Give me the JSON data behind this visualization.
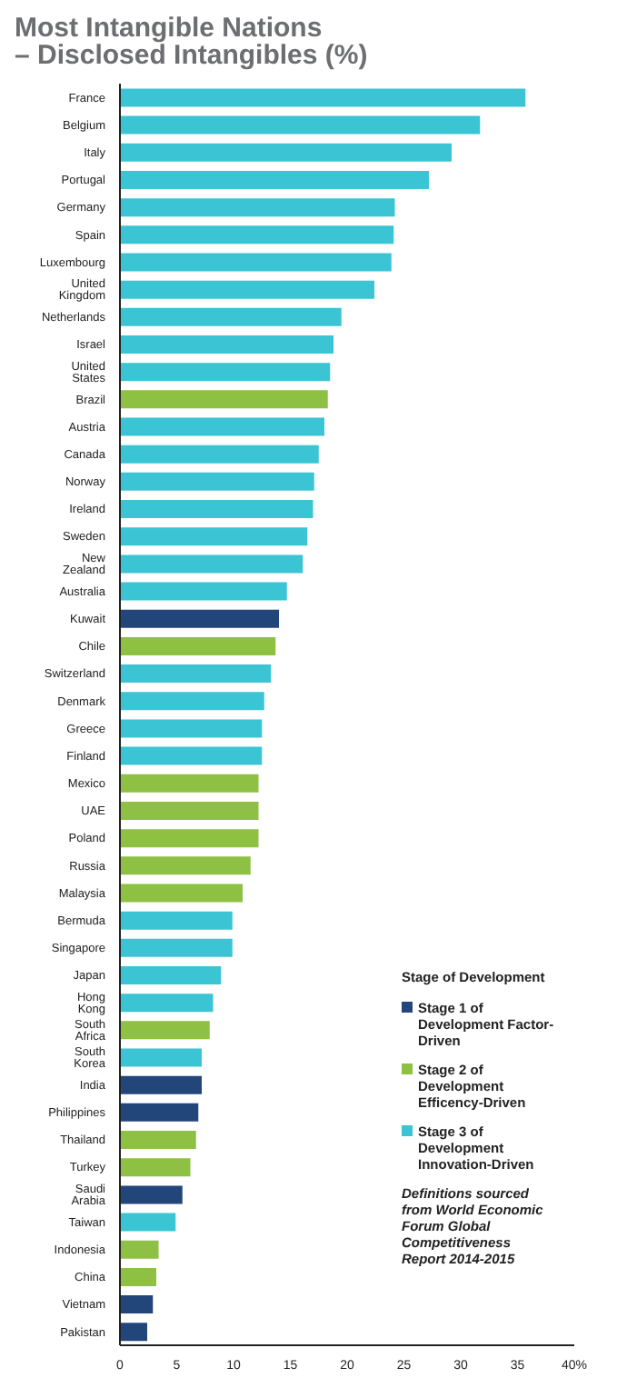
{
  "chart_data": {
    "type": "bar",
    "orientation": "horizontal",
    "stacked": true,
    "title": "Most Intangible Nations\n– Disclosed Intangibles (%)",
    "categories": [
      "France",
      "Belgium",
      "Italy",
      "Portugal",
      "Germany",
      "Spain",
      "Luxembourg",
      "United Kingdom",
      "Netherlands",
      "Israel",
      "United States",
      "Brazil",
      "Austria",
      "Canada",
      "Norway",
      "Ireland",
      "Sweden",
      "New Zealand",
      "Australia",
      "Kuwait",
      "Chile",
      "Switzerland",
      "Denmark",
      "Greece",
      "Finland",
      "Mexico",
      "UAE",
      "Poland",
      "Russia",
      "Malaysia",
      "Bermuda",
      "Singapore",
      "Japan",
      "Hong Kong",
      "South Africa",
      "South Korea",
      "India",
      "Philippines",
      "Thailand",
      "Turkey",
      "Saudi Arabia",
      "Taiwan",
      "Indonesia",
      "China",
      "Vietnam",
      "Pakistan"
    ],
    "series": [
      {
        "name": "Stage 1 of Development Factor-Driven",
        "color": "#22467a",
        "values": [
          null,
          null,
          null,
          null,
          null,
          null,
          null,
          null,
          null,
          null,
          null,
          null,
          null,
          null,
          null,
          null,
          null,
          null,
          null,
          14.0,
          null,
          null,
          null,
          null,
          null,
          null,
          null,
          null,
          null,
          null,
          null,
          null,
          null,
          null,
          null,
          null,
          7.2,
          6.9,
          null,
          null,
          5.5,
          null,
          null,
          null,
          2.9,
          2.4
        ]
      },
      {
        "name": "Stage 2 of Development Efficency-Driven",
        "color": "#8dc043",
        "values": [
          null,
          null,
          null,
          null,
          null,
          null,
          null,
          null,
          null,
          null,
          null,
          18.3,
          null,
          null,
          null,
          null,
          null,
          null,
          null,
          null,
          13.7,
          null,
          null,
          null,
          null,
          12.2,
          12.2,
          12.2,
          11.5,
          10.8,
          null,
          null,
          null,
          null,
          7.9,
          null,
          null,
          null,
          6.7,
          6.2,
          null,
          null,
          3.4,
          3.2,
          null,
          null
        ]
      },
      {
        "name": "Stage 3 of Development Innovation-Driven",
        "color": "#3bc4d3",
        "values": [
          35.7,
          31.7,
          29.2,
          27.2,
          24.2,
          24.1,
          23.9,
          22.4,
          19.5,
          18.8,
          18.5,
          null,
          18.0,
          17.5,
          17.1,
          17.0,
          16.5,
          16.1,
          14.7,
          null,
          null,
          13.3,
          12.7,
          12.5,
          12.5,
          null,
          null,
          null,
          null,
          null,
          9.9,
          9.9,
          8.9,
          8.2,
          null,
          7.2,
          null,
          null,
          null,
          null,
          null,
          4.9,
          null,
          null,
          null,
          null
        ]
      }
    ],
    "xlim": [
      0,
      40
    ],
    "xticks": [
      0,
      5,
      10,
      15,
      20,
      25,
      30,
      35,
      {
        "value": 40,
        "label": "40%"
      }
    ],
    "legend": "bottom right",
    "legend_title": "Stage of Development",
    "annotations": [
      "Definitions sourced from World Economic Forum Global Competitiveness Report 2014-2015"
    ]
  }
}
